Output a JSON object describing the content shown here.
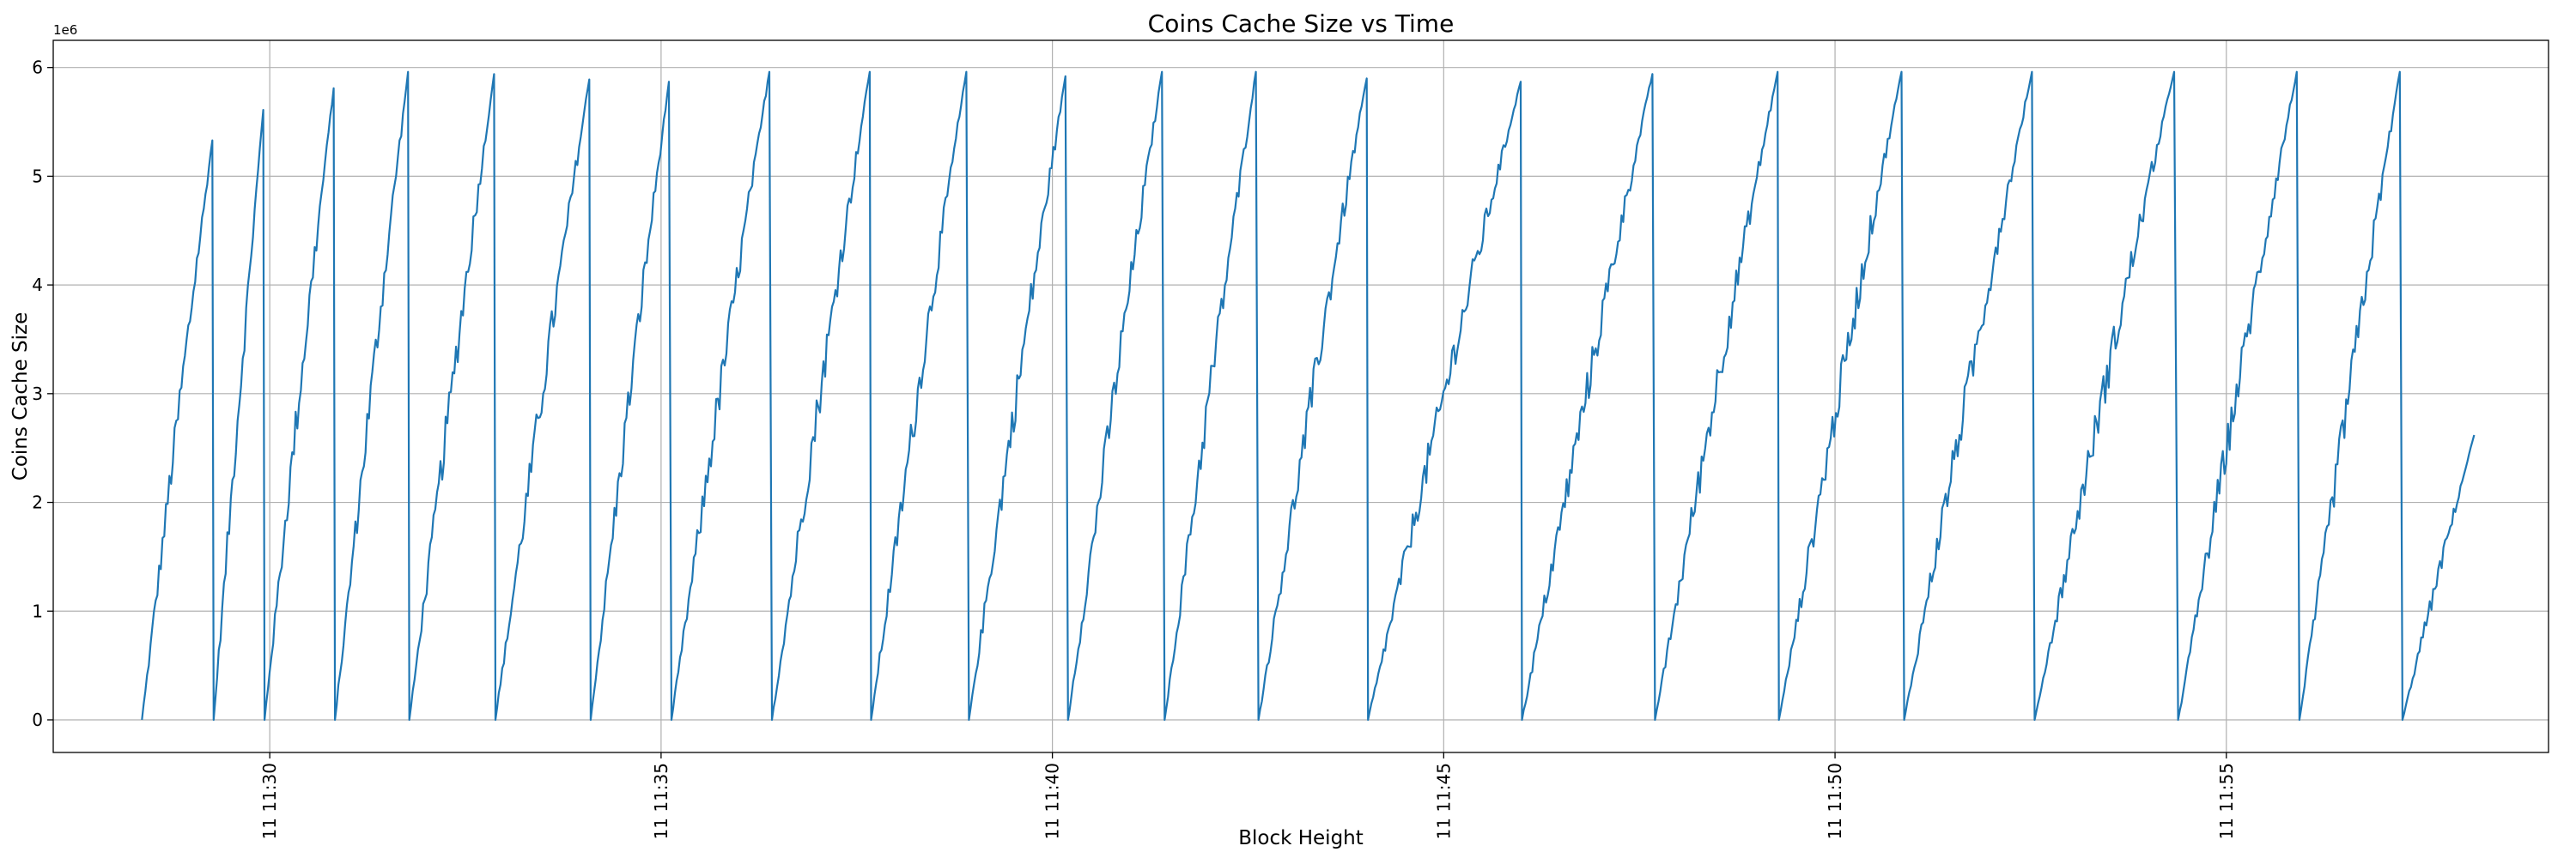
{
  "chart_data": {
    "type": "line",
    "title": "Coins Cache Size vs Time",
    "xlabel": "Block Height",
    "ylabel": "Coins Cache Size",
    "y_offset_label": "1e6",
    "ylim": [
      -300000,
      6250000
    ],
    "xlim": [
      "11:27:14",
      "11:59:07"
    ],
    "yticks": [
      0,
      1000000,
      2000000,
      3000000,
      4000000,
      5000000,
      6000000
    ],
    "ytick_labels": [
      "0",
      "1",
      "2",
      "3",
      "4",
      "5",
      "6"
    ],
    "xticks": [
      "11:30:00",
      "11:35:00",
      "11:40:00",
      "11:45:00",
      "11:50:00",
      "11:55:00"
    ],
    "xtick_labels": [
      "11 11:30",
      "11 11:35",
      "11 11:40",
      "11 11:45",
      "11 11:50",
      "11 11:55"
    ],
    "grid": true,
    "series": [
      {
        "color": "#1f77b4",
        "x": [
          "11:28:22",
          "11:29:16",
          "11:29:17",
          "11:29:55",
          "11:29:56",
          "11:30:49",
          "11:30:50",
          "11:31:46",
          "11:31:47",
          "11:32:52",
          "11:32:53",
          "11:34:05",
          "11:34:06",
          "11:35:06",
          "11:35:08",
          "11:36:23",
          "11:36:25",
          "11:37:40",
          "11:37:41",
          "11:38:54",
          "11:38:56",
          "11:40:10",
          "11:40:12",
          "11:41:24",
          "11:41:26",
          "11:42:36",
          "11:42:38",
          "11:44:01",
          "11:44:02",
          "11:45:59",
          "11:46:00",
          "11:47:40",
          "11:47:42",
          "11:49:16",
          "11:49:17",
          "11:50:51",
          "11:50:53",
          "11:52:31",
          "11:52:33",
          "11:54:20",
          "11:54:23",
          "11:55:54",
          "11:55:56",
          "11:57:13",
          "11:57:15",
          "11:58:10"
        ],
        "y": [
          0,
          5330000,
          0,
          5610000,
          0,
          5810000,
          0,
          5960000,
          0,
          5940000,
          0,
          5890000,
          0,
          5870000,
          0,
          5960000,
          0,
          5960000,
          0,
          5960000,
          0,
          5920000,
          0,
          5960000,
          0,
          5960000,
          0,
          5900000,
          0,
          5870000,
          0,
          5940000,
          0,
          5960000,
          0,
          5960000,
          0,
          5960000,
          0,
          5960000,
          0,
          5960000,
          0,
          5960000,
          0,
          2620000
        ]
      }
    ]
  }
}
